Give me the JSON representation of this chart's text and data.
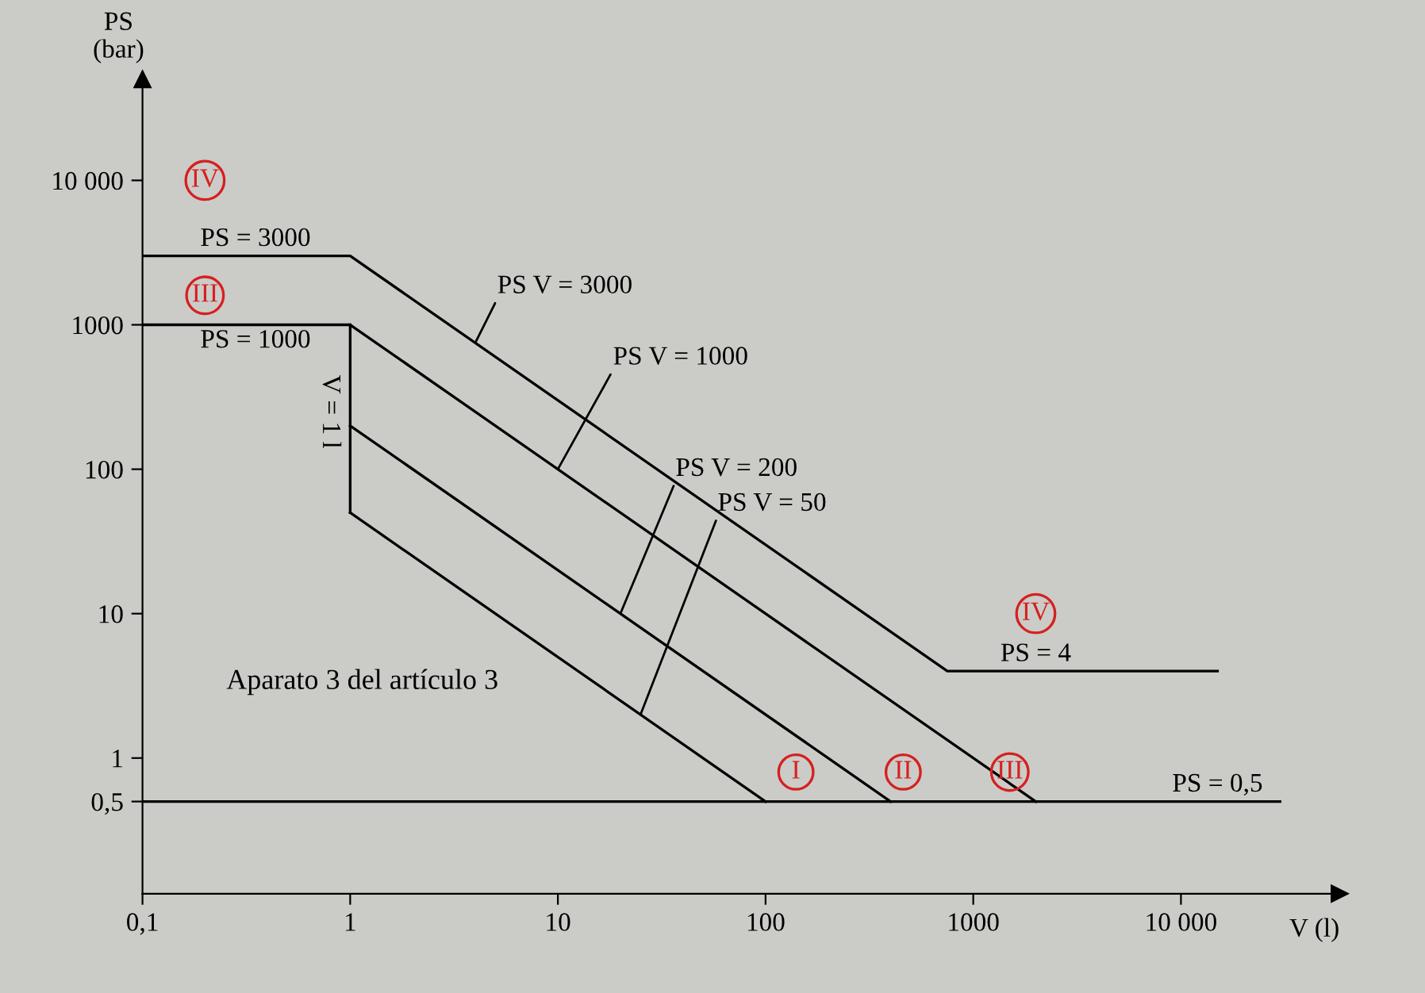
{
  "chart_data": {
    "type": "line",
    "xlabel": "V (l)",
    "ylabel": "PS\n(bar)",
    "log": "xy",
    "grid": false,
    "marker": "none",
    "line_style": "solid",
    "xlim": [
      0.1,
      58000
    ],
    "ylim": [
      0.115,
      50000
    ],
    "xticks": [
      {
        "value": 0.1,
        "label": "0,1"
      },
      1,
      10,
      100,
      1000,
      {
        "value": 10000,
        "label": "10 000"
      }
    ],
    "yticks": [
      {
        "value": 0.5,
        "label": "0,5"
      },
      1,
      10,
      100,
      1000,
      {
        "value": 10000,
        "label": "10 000"
      }
    ],
    "series": [
      {
        "color": "#000000",
        "x": [
          0.1,
          1,
          750,
          15000
        ],
        "values": [
          3000,
          3000,
          4,
          4
        ]
      },
      {
        "color": "#000000",
        "x": [
          0.1,
          1,
          2000
        ],
        "values": [
          1000,
          1000,
          0.5
        ]
      },
      {
        "color": "#000000",
        "x": [
          1,
          400
        ],
        "values": [
          200,
          0.5
        ]
      },
      {
        "color": "#000000",
        "x": [
          1,
          100
        ],
        "values": [
          50,
          0.5
        ]
      },
      {
        "color": "#000000",
        "x": [
          1,
          1
        ],
        "values": [
          50,
          1000
        ]
      },
      {
        "color": "#000000",
        "x": [
          0.1,
          30000
        ],
        "values": [
          0.5,
          0.5
        ]
      }
    ],
    "annotations": [
      {
        "text": "PS = 3000",
        "x": 0.35,
        "y": 3000
      },
      {
        "text": "PS = 1000",
        "x": 0.35,
        "y": 1000
      },
      {
        "text": "V = 1 l",
        "x": 1,
        "y": 250
      },
      {
        "text": "PS V = 3000",
        "x": 4,
        "y": 750
      },
      {
        "text": "PS V = 1000",
        "x": 10,
        "y": 100
      },
      {
        "text": "PS V = 200",
        "x": 20,
        "y": 10
      },
      {
        "text": "PS V = 50",
        "x": 25,
        "y": 2
      },
      {
        "text": "PS = 4",
        "x": 2000,
        "y": 4
      },
      {
        "text": "PS = 0,5",
        "x": 15000,
        "y": 0.5
      },
      {
        "text": "IV",
        "x": 0.2,
        "y": 10000
      },
      {
        "text": "III",
        "x": 0.2,
        "y": 1600
      },
      {
        "text": "IV",
        "x": 2000,
        "y": 10
      },
      {
        "text": "I",
        "x": 140,
        "y": 0.8
      },
      {
        "text": "II",
        "x": 460,
        "y": 0.8
      },
      {
        "text": "III",
        "x": 1500,
        "y": 0.8
      },
      "Aparato 3 del artículo 3"
    ]
  }
}
